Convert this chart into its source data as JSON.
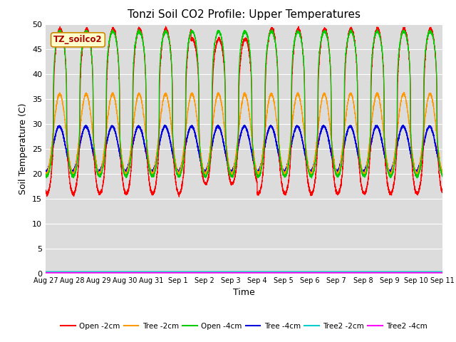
{
  "title": "Tonzi Soil CO2 Profile: Upper Temperatures",
  "xlabel": "Time",
  "ylabel": "Soil Temperature (C)",
  "ylim": [
    0,
    50
  ],
  "yticks": [
    0,
    5,
    10,
    15,
    20,
    25,
    30,
    35,
    40,
    45,
    50
  ],
  "plot_bg_color": "#dcdcdc",
  "legend_label": "TZ_soilco2",
  "series_colors": {
    "Open -2cm": "#ff0000",
    "Tree -2cm": "#ff9900",
    "Open -4cm": "#00cc00",
    "Tree -4cm": "#0000dd",
    "Tree2 -2cm": "#00cccc",
    "Tree2 -4cm": "#ff00ff"
  },
  "date_labels": [
    "Aug 27",
    "Aug 28",
    "Aug 29",
    "Aug 30",
    "Aug 31",
    "Sep 1",
    "Sep 2",
    "Sep 3",
    "Sep 4",
    "Sep 5",
    "Sep 6",
    "Sep 7",
    "Sep 8",
    "Sep 9",
    "Sep 10",
    "Sep 11"
  ],
  "date_positions": [
    0,
    1,
    2,
    3,
    4,
    5,
    6,
    7,
    8,
    9,
    10,
    11,
    12,
    13,
    14,
    15
  ]
}
